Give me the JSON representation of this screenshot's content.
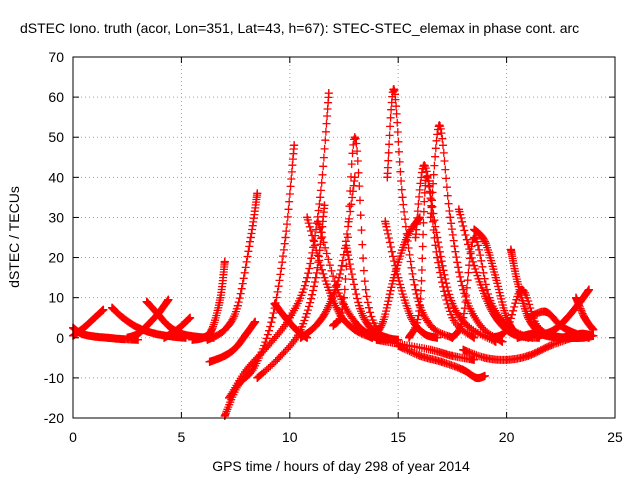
{
  "chart_data": {
    "type": "scatter",
    "title": "dSTEC Iono. truth (acor, Lon=351, Lat=43, h=67): STEC-STEC_elemax in phase cont. arc",
    "xlabel": "GPS time / hours of day 298 of year 2014",
    "ylabel": "dSTEC  / TECUs",
    "xlim": [
      0,
      25
    ],
    "ylim": [
      -20,
      70
    ],
    "xticks": [
      0,
      5,
      10,
      15,
      20,
      25
    ],
    "yticks": [
      -20,
      -10,
      0,
      10,
      20,
      30,
      40,
      50,
      60,
      70
    ],
    "grid": true,
    "marker": "+",
    "color": "#ff0000",
    "series": [
      {
        "x": [
          0.0,
          0.5,
          1.0,
          1.4
        ],
        "y": [
          0.5,
          2.5,
          5.0,
          7.0
        ]
      },
      {
        "x": [
          0.0,
          0.4,
          1.0,
          1.6,
          2.2,
          3.0
        ],
        "y": [
          2.5,
          1.0,
          0.3,
          0.0,
          -0.3,
          -0.5
        ]
      },
      {
        "x": [
          1.8,
          2.3,
          3.0,
          3.8,
          4.6,
          5.2
        ],
        "y": [
          7.5,
          5.0,
          2.5,
          1.0,
          0.3,
          0.0
        ]
      },
      {
        "x": [
          2.5,
          3.0,
          3.5,
          4.0,
          4.4
        ],
        "y": [
          0.0,
          1.0,
          3.5,
          6.5,
          9.5
        ]
      },
      {
        "x": [
          3.4,
          3.9,
          4.4,
          5.0,
          5.8,
          6.5
        ],
        "y": [
          9.0,
          6.0,
          3.0,
          1.0,
          0.2,
          0.0
        ]
      },
      {
        "x": [
          4.2,
          4.8,
          5.4
        ],
        "y": [
          0.0,
          2.0,
          5.0
        ]
      },
      {
        "x": [
          5.5,
          6.0,
          6.4,
          6.8,
          7.0
        ],
        "y": [
          -0.5,
          0.0,
          2.0,
          10.0,
          19.0
        ]
      },
      {
        "x": [
          6.2,
          7.0,
          7.6,
          8.2,
          8.5
        ],
        "y": [
          -0.5,
          2.0,
          8.0,
          25.0,
          36.0
        ]
      },
      {
        "x": [
          6.3,
          7.0,
          7.5,
          8.0,
          8.4
        ],
        "y": [
          -6.0,
          -4.5,
          -2.5,
          1.0,
          4.0
        ]
      },
      {
        "x": [
          7.0,
          7.6,
          8.4,
          9.2,
          9.8,
          10.2
        ],
        "y": [
          -19.5,
          -12.0,
          -7.0,
          5.0,
          25.0,
          48.0
        ]
      },
      {
        "x": [
          7.2,
          8.0,
          9.0,
          10.0,
          10.8,
          11.4,
          11.8
        ],
        "y": [
          -15.0,
          -8.0,
          -2.0,
          5.0,
          15.0,
          35.0,
          61.0
        ]
      },
      {
        "x": [
          8.5,
          9.5,
          10.5,
          11.2,
          11.6
        ],
        "y": [
          -10.0,
          -5.0,
          2.0,
          15.0,
          33.0
        ]
      },
      {
        "x": [
          9.3,
          9.8,
          10.3,
          10.8
        ],
        "y": [
          8.5,
          5.0,
          2.0,
          0.0
        ]
      },
      {
        "x": [
          10.8,
          11.6,
          12.3,
          13.0,
          13.8
        ],
        "y": [
          30.0,
          15.0,
          6.0,
          2.0,
          0.0
        ]
      },
      {
        "x": [
          11.3,
          12.2,
          13.0,
          13.8,
          14.5
        ],
        "y": [
          29.0,
          12.0,
          4.0,
          0.5,
          -0.5
        ]
      },
      {
        "x": [
          10.5,
          11.2,
          11.8,
          12.4,
          13.0
        ],
        "y": [
          0.0,
          3.0,
          8.0,
          18.0,
          40.0
        ]
      },
      {
        "x": [
          12.0,
          12.5,
          13.0,
          13.5,
          14.2
        ],
        "y": [
          3.0,
          10.0,
          50.0,
          12.0,
          0.0
        ]
      },
      {
        "x": [
          12.6,
          13.2,
          13.8,
          14.5,
          15.0
        ],
        "y": [
          23.0,
          8.0,
          2.0,
          0.0,
          -0.5
        ]
      },
      {
        "x": [
          13.8,
          14.3,
          14.8,
          15.4,
          16.0
        ],
        "y": [
          0.0,
          4.0,
          15.0,
          25.0,
          30.0
        ]
      },
      {
        "x": [
          14.4,
          15.0,
          15.6,
          16.2,
          16.8
        ],
        "y": [
          29.0,
          15.0,
          5.0,
          1.0,
          0.0
        ]
      },
      {
        "x": [
          14.5,
          14.8,
          15.2,
          15.8,
          16.5,
          17.5
        ],
        "y": [
          40.0,
          62.0,
          35.0,
          12.0,
          3.0,
          0.0
        ]
      },
      {
        "x": [
          15.5,
          16.0,
          16.3,
          16.8,
          17.5,
          18.5
        ],
        "y": [
          0.0,
          8.0,
          40.0,
          20.0,
          5.0,
          0.0
        ]
      },
      {
        "x": [
          15.8,
          16.2,
          16.8,
          17.4,
          18.2,
          19.5
        ],
        "y": [
          25.0,
          43.0,
          25.0,
          10.0,
          3.0,
          -1.0
        ]
      },
      {
        "x": [
          16.5,
          16.9,
          17.4,
          18.0,
          18.8,
          19.8
        ],
        "y": [
          30.0,
          53.0,
          30.0,
          12.0,
          3.0,
          -1.0
        ]
      },
      {
        "x": [
          15.0,
          16.0,
          17.0,
          18.0,
          18.6,
          19.0
        ],
        "y": [
          -2.0,
          -4.5,
          -6.0,
          -8.0,
          -10.0,
          -9.5
        ]
      },
      {
        "x": [
          14.0,
          15.0,
          16.5,
          17.5,
          18.5
        ],
        "y": [
          -0.5,
          -1.5,
          -3.0,
          -4.5,
          -5.5
        ]
      },
      {
        "x": [
          17.5,
          18.0,
          18.5,
          19.2,
          20.0,
          21.0
        ],
        "y": [
          0.0,
          5.0,
          25.0,
          10.0,
          3.0,
          0.0
        ]
      },
      {
        "x": [
          17.8,
          18.5,
          19.2,
          19.8,
          20.5,
          21.5
        ],
        "y": [
          32.0,
          18.0,
          8.0,
          3.0,
          0.5,
          0.0
        ]
      },
      {
        "x": [
          18.0,
          19.0,
          20.0,
          21.0,
          22.0,
          23.0
        ],
        "y": [
          -3.0,
          -5.0,
          -5.5,
          -4.5,
          -2.0,
          0.0
        ]
      },
      {
        "x": [
          18.5,
          19.0,
          19.5,
          20.0,
          20.5,
          21.2
        ],
        "y": [
          27.0,
          24.0,
          15.0,
          5.0,
          1.0,
          0.0
        ]
      },
      {
        "x": [
          19.3,
          20.0,
          20.7,
          21.4,
          22.2
        ],
        "y": [
          0.0,
          2.0,
          12.0,
          3.0,
          0.0
        ]
      },
      {
        "x": [
          20.2,
          20.5,
          21.0,
          21.6,
          22.4
        ],
        "y": [
          22.0,
          14.0,
          5.0,
          1.0,
          0.0
        ]
      },
      {
        "x": [
          20.5,
          21.2,
          22.0,
          22.8,
          23.5,
          24.0
        ],
        "y": [
          0.0,
          1.0,
          0.5,
          0.0,
          0.0,
          0.5
        ]
      },
      {
        "x": [
          21.0,
          21.8,
          22.5,
          23.2,
          23.8
        ],
        "y": [
          5.0,
          6.5,
          3.0,
          1.0,
          0.0
        ]
      },
      {
        "x": [
          21.5,
          22.2,
          22.8,
          23.4,
          23.8
        ],
        "y": [
          0.5,
          2.0,
          5.0,
          9.0,
          12.0
        ]
      },
      {
        "x": [
          22.5,
          23.0,
          23.5,
          24.0
        ],
        "y": [
          0.0,
          0.5,
          1.0,
          0.5
        ]
      },
      {
        "x": [
          23.2,
          23.6,
          24.0
        ],
        "y": [
          10.0,
          5.0,
          2.0
        ]
      }
    ]
  }
}
